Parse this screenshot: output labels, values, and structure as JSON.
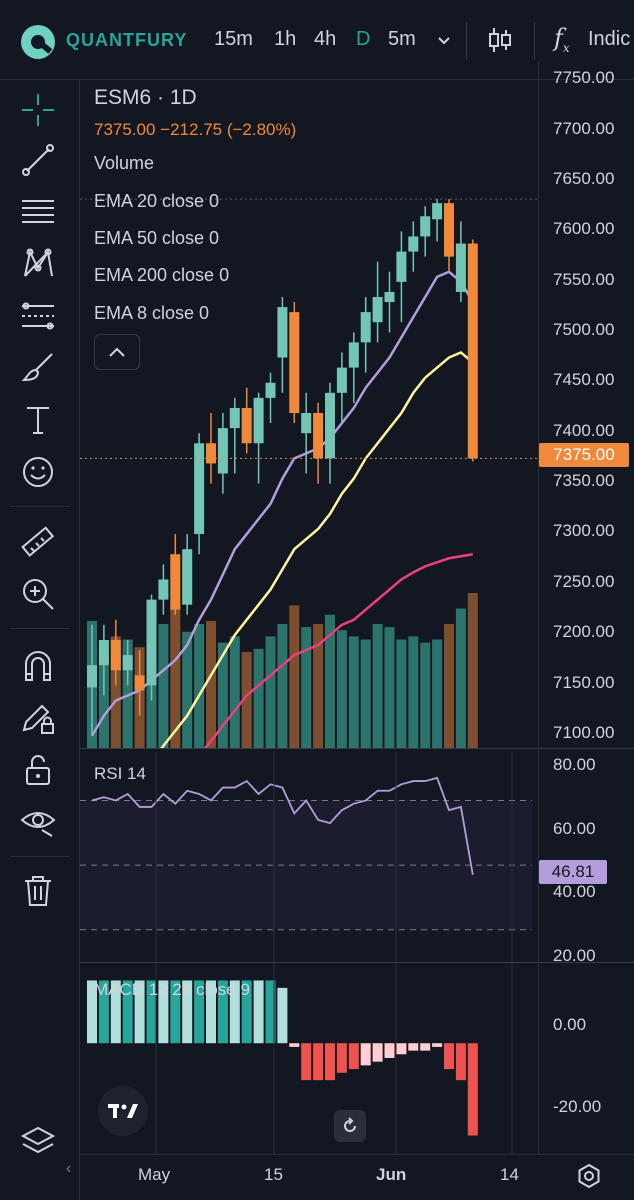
{
  "header": {
    "brand": "QUANTFURY",
    "timeframes": [
      "15m",
      "1h",
      "4h",
      "D",
      "5m"
    ],
    "active_timeframe": "D",
    "indicators_label": "Indic"
  },
  "legend": {
    "symbol": "ESM6 · 1D",
    "price_line": "7375.00  −212.75 (−2.80%)",
    "indicators": [
      "Volume",
      "EMA 20 close 0",
      "EMA 50 close 0",
      "EMA 200 close 0",
      "EMA 8 close 0"
    ]
  },
  "price_axis": {
    "ticks": [
      "7750.00",
      "7700.00",
      "7650.00",
      "7600.00",
      "7550.00",
      "7500.00",
      "7450.00",
      "7400.00",
      "7350.00",
      "7300.00",
      "7250.00",
      "7200.00",
      "7150.00",
      "7100.00"
    ],
    "last_price": "7375.00"
  },
  "rsi": {
    "title": "RSI 14",
    "value": "46.81",
    "ticks": [
      "80.00",
      "60.00",
      "40.00",
      "20.00"
    ]
  },
  "macd": {
    "title": "MACD 12 26 close 9",
    "ticks": [
      "0.00",
      "-20.00"
    ]
  },
  "time_axis": {
    "labels": [
      "May",
      "15",
      "Jun",
      "14"
    ]
  },
  "colors": {
    "background": "#131722",
    "up": "#73c6b6",
    "down": "#f0893b",
    "ema20": "#b39ddb",
    "ema50": "#fff59d",
    "ema200": "#ec407a",
    "brand": "#26a69a"
  },
  "chart_data": {
    "type": "candlestick",
    "candles": [
      {
        "o": 7148,
        "h": 7210,
        "l": 7100,
        "c": 7170
      },
      {
        "o": 7170,
        "h": 7210,
        "l": 7140,
        "c": 7195
      },
      {
        "o": 7195,
        "h": 7215,
        "l": 7150,
        "c": 7165
      },
      {
        "o": 7165,
        "h": 7195,
        "l": 7150,
        "c": 7180
      },
      {
        "o": 7160,
        "h": 7185,
        "l": 7120,
        "c": 7145
      },
      {
        "o": 7150,
        "h": 7240,
        "l": 7135,
        "c": 7235
      },
      {
        "o": 7235,
        "h": 7270,
        "l": 7220,
        "c": 7255
      },
      {
        "o": 7280,
        "h": 7300,
        "l": 7220,
        "c": 7225
      },
      {
        "o": 7230,
        "h": 7300,
        "l": 7220,
        "c": 7285
      },
      {
        "o": 7300,
        "h": 7400,
        "l": 7280,
        "c": 7390
      },
      {
        "o": 7390,
        "h": 7420,
        "l": 7350,
        "c": 7370
      },
      {
        "o": 7360,
        "h": 7420,
        "l": 7340,
        "c": 7405
      },
      {
        "o": 7405,
        "h": 7435,
        "l": 7360,
        "c": 7425
      },
      {
        "o": 7425,
        "h": 7445,
        "l": 7380,
        "c": 7390
      },
      {
        "o": 7390,
        "h": 7440,
        "l": 7350,
        "c": 7435
      },
      {
        "o": 7435,
        "h": 7460,
        "l": 7410,
        "c": 7450
      },
      {
        "o": 7475,
        "h": 7535,
        "l": 7440,
        "c": 7525
      },
      {
        "o": 7520,
        "h": 7530,
        "l": 7410,
        "c": 7420
      },
      {
        "o": 7400,
        "h": 7440,
        "l": 7360,
        "c": 7420
      },
      {
        "o": 7420,
        "h": 7430,
        "l": 7350,
        "c": 7375
      },
      {
        "o": 7375,
        "h": 7450,
        "l": 7350,
        "c": 7440
      },
      {
        "o": 7440,
        "h": 7480,
        "l": 7410,
        "c": 7465
      },
      {
        "o": 7465,
        "h": 7500,
        "l": 7430,
        "c": 7490
      },
      {
        "o": 7490,
        "h": 7535,
        "l": 7460,
        "c": 7520
      },
      {
        "o": 7510,
        "h": 7570,
        "l": 7490,
        "c": 7535
      },
      {
        "o": 7530,
        "h": 7560,
        "l": 7500,
        "c": 7540
      },
      {
        "o": 7550,
        "h": 7600,
        "l": 7510,
        "c": 7580
      },
      {
        "o": 7580,
        "h": 7610,
        "l": 7560,
        "c": 7595
      },
      {
        "o": 7595,
        "h": 7625,
        "l": 7575,
        "c": 7615
      },
      {
        "o": 7612,
        "h": 7632,
        "l": 7590,
        "c": 7628
      },
      {
        "o": 7628,
        "h": 7632,
        "l": 7560,
        "c": 7575
      },
      {
        "o": 7540,
        "h": 7610,
        "l": 7530,
        "c": 7588
      },
      {
        "o": 7588,
        "h": 7592,
        "l": 7372,
        "c": 7375
      }
    ],
    "volume_rel": [
      0.82,
      0.62,
      0.72,
      0.7,
      0.65,
      0.75,
      0.8,
      0.9,
      0.75,
      0.8,
      0.82,
      0.68,
      0.72,
      0.62,
      0.64,
      0.72,
      0.8,
      0.92,
      0.78,
      0.8,
      0.86,
      0.76,
      0.72,
      0.7,
      0.8,
      0.78,
      0.7,
      0.72,
      0.68,
      0.7,
      0.8,
      0.9,
      1.0
    ],
    "ema20": [
      7100,
      7120,
      7135,
      7140,
      7145,
      7155,
      7165,
      7175,
      7190,
      7215,
      7235,
      7260,
      7285,
      7300,
      7315,
      7330,
      7355,
      7375,
      7380,
      7385,
      7395,
      7410,
      7425,
      7445,
      7460,
      7475,
      7495,
      7515,
      7535,
      7555,
      7560,
      7550,
      7530
    ],
    "ema50": [
      7020,
      7030,
      7040,
      7050,
      7060,
      7075,
      7090,
      7105,
      7120,
      7140,
      7160,
      7180,
      7200,
      7215,
      7230,
      7245,
      7265,
      7285,
      7295,
      7305,
      7320,
      7340,
      7355,
      7375,
      7390,
      7405,
      7420,
      7440,
      7455,
      7465,
      7475,
      7480,
      7470
    ],
    "ema200": [
      6900,
      6920,
      6940,
      6960,
      6980,
      7000,
      7020,
      7040,
      7060,
      7080,
      7095,
      7110,
      7125,
      7140,
      7150,
      7160,
      7170,
      7180,
      7185,
      7190,
      7200,
      7210,
      7215,
      7225,
      7235,
      7245,
      7255,
      7262,
      7268,
      7272,
      7276,
      7278,
      7280
    ],
    "rsi": [
      70,
      71,
      70,
      72,
      68,
      68,
      72,
      69,
      73,
      72,
      70,
      74,
      74,
      76,
      72,
      75,
      74,
      66,
      70,
      64,
      63,
      67,
      69,
      70,
      73,
      73,
      75,
      76,
      76,
      77,
      67,
      68,
      47
    ],
    "macd_hist": [
      17,
      17,
      17,
      17,
      17,
      17,
      17,
      17,
      17,
      17,
      17,
      17,
      17,
      17,
      17,
      17,
      15,
      -1,
      -10,
      -10,
      -10,
      -8,
      -7,
      -6,
      -5,
      -4,
      -3,
      -2,
      -2,
      -1,
      -7,
      -10,
      -25
    ],
    "price_range": [
      7080,
      7760
    ],
    "rsi_range": [
      20,
      85
    ],
    "macd_range": [
      -30,
      22
    ]
  }
}
